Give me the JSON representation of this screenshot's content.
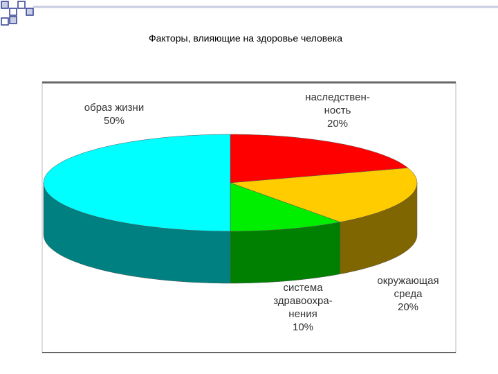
{
  "chart_data": {
    "type": "pie3d",
    "title": "Факторы, влияющие на здоровье человека",
    "categories": [
      "наследствен-\nность",
      "окружающая\nсреда",
      "система\nздравоохра-\nнения",
      "образ жизни"
    ],
    "values": [
      20,
      20,
      10,
      50
    ],
    "value_labels": [
      "20%",
      "20%",
      "10%",
      "50%"
    ],
    "colors": [
      "#ff0000",
      "#ffcc00",
      "#00ee00",
      "#00ffff"
    ],
    "side_colors": [
      "#990000",
      "#806600",
      "#008000",
      "#008080"
    ]
  }
}
